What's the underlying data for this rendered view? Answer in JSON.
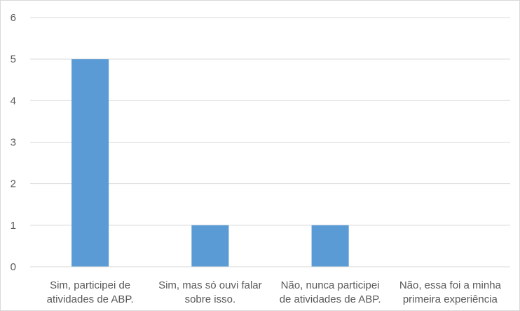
{
  "chart_data": {
    "type": "bar",
    "title": "",
    "xlabel": "",
    "ylabel": "",
    "categories": [
      [
        "Sim, participei de",
        "atividades de ABP."
      ],
      [
        "Sim, mas só ouvi falar",
        "sobre isso."
      ],
      [
        "Não, nunca participei",
        "de atividades de ABP."
      ],
      [
        "Não, essa foi a minha",
        "primeira experiência"
      ]
    ],
    "values": [
      5,
      1,
      1,
      0
    ],
    "ylim": [
      0,
      6
    ],
    "yticks": [
      "0",
      "1",
      "2",
      "3",
      "4",
      "5",
      "6"
    ],
    "grid": true,
    "legend": "none",
    "bar_color": "#5b9bd5",
    "grid_color": "#d9d9d9",
    "text_color": "#595959"
  }
}
